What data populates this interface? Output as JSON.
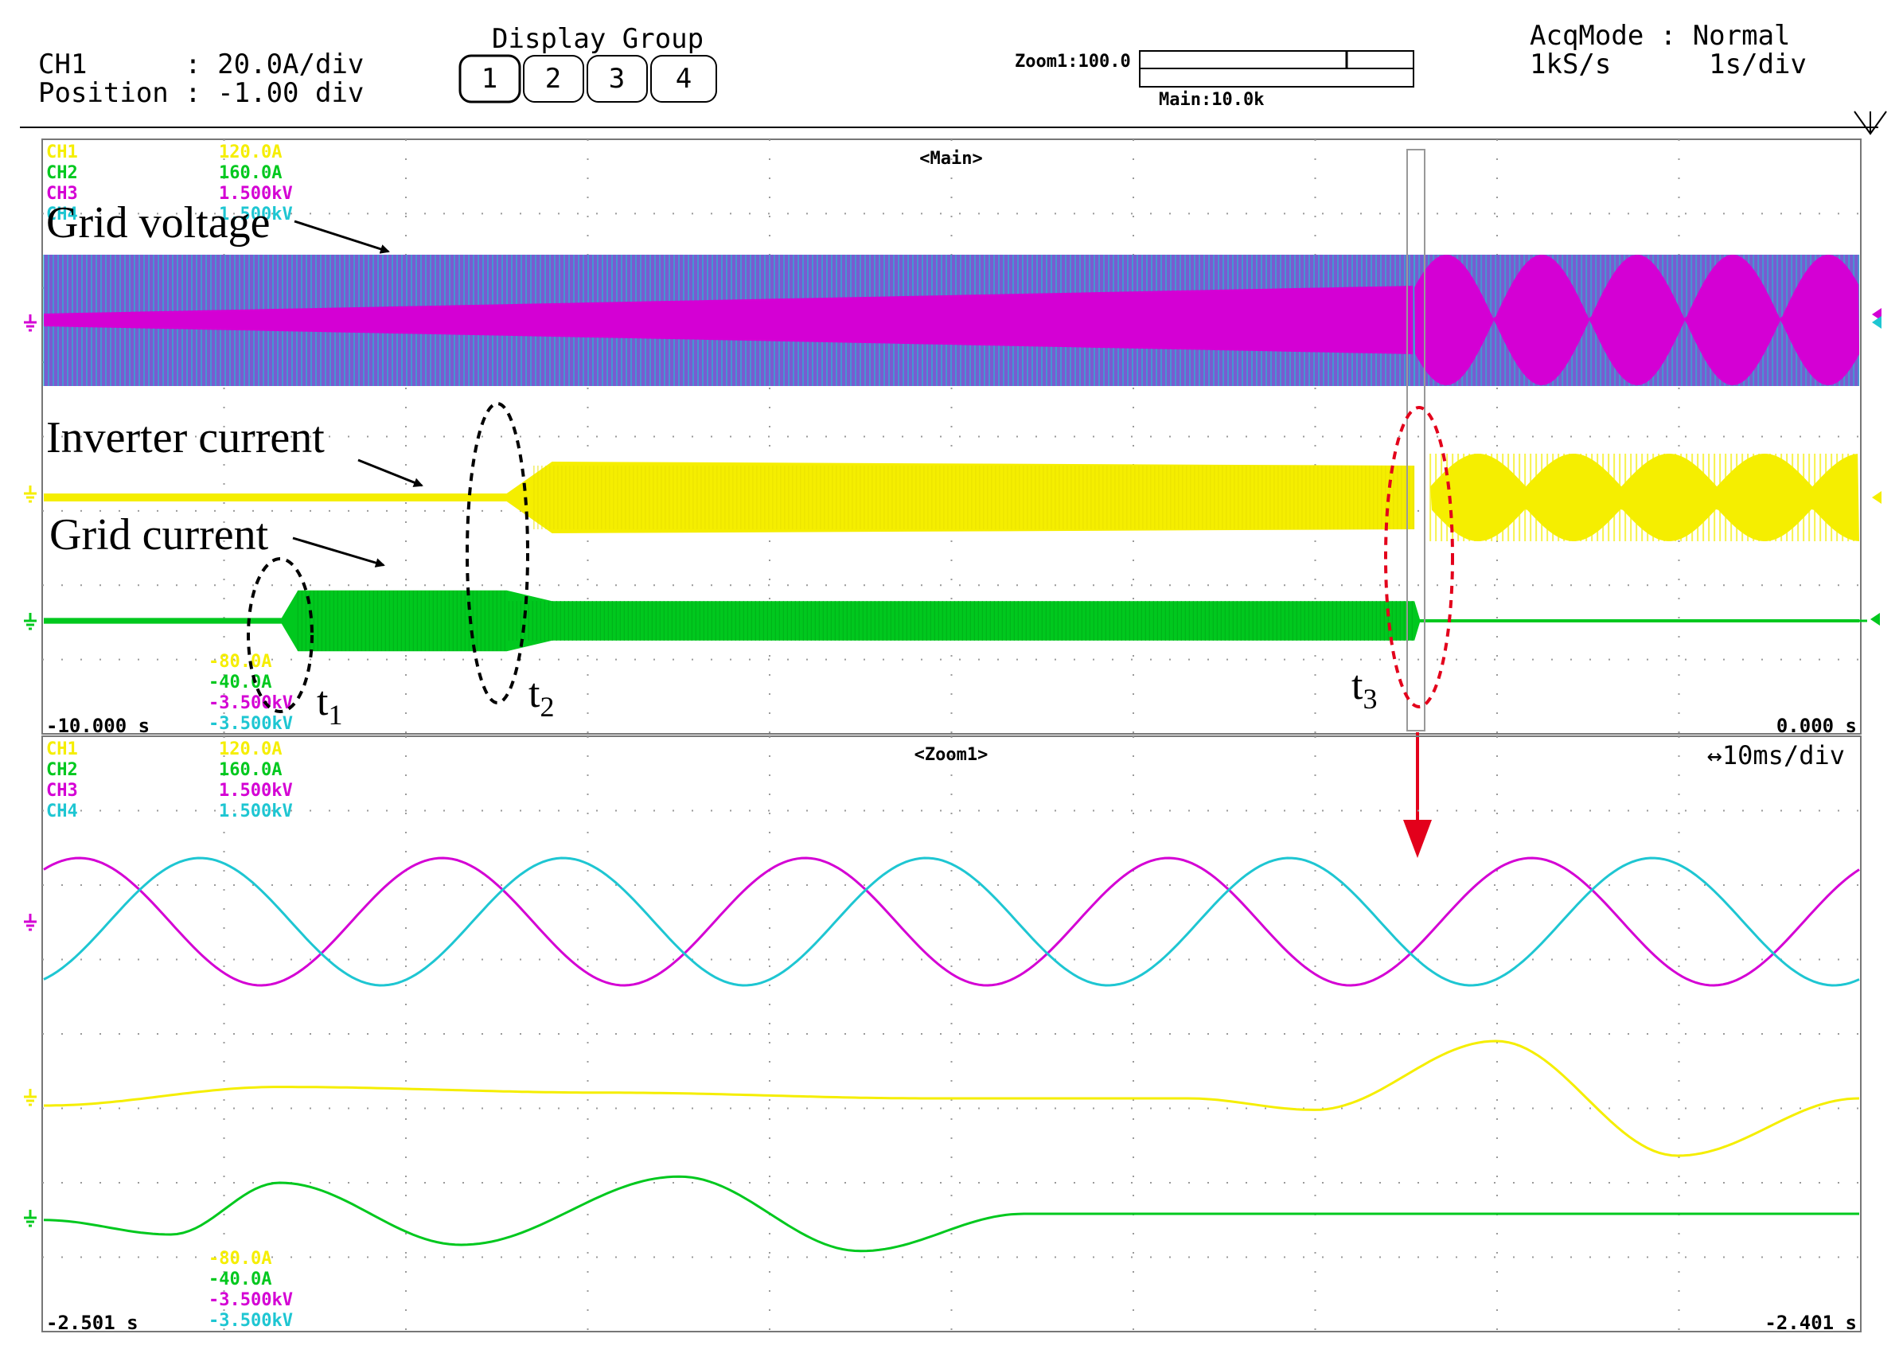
{
  "header": {
    "ch1_line": "CH1      : 20.0A/div",
    "position_line": "Position : -1.00 div",
    "display_group_title": "Display Group",
    "display_group_buttons": [
      "1",
      "2",
      "3",
      "4"
    ],
    "zoom_label": "Zoom1:100.0",
    "main_label": "Main:10.0k",
    "acqmode_line": "AcqMode : Normal",
    "rate_line": "1kS/s      1s/div"
  },
  "colors": {
    "ch1": "#f5ee00",
    "ch2": "#00c81e",
    "ch3": "#d400d4",
    "ch4": "#1ec6d2",
    "grid": "#9a9a9a",
    "annotation": "#000000",
    "highlight": "#e3001b"
  },
  "main_panel": {
    "title": "<Main>",
    "scale_top": [
      {
        "ch": "CH1",
        "value": "120.0A",
        "color": "ch1"
      },
      {
        "ch": "CH2",
        "value": "160.0A",
        "color": "ch2"
      },
      {
        "ch": "CH3",
        "value": "1.500kV",
        "color": "ch3"
      },
      {
        "ch": "CH4",
        "value": "1.500kV",
        "color": "ch4"
      }
    ],
    "scale_bottom": [
      {
        "value": "-80.0A",
        "color": "ch1"
      },
      {
        "value": "-40.0A",
        "color": "ch2"
      },
      {
        "value": "-3.500kV",
        "color": "ch3"
      },
      {
        "value": "-3.500kV",
        "color": "ch4"
      }
    ],
    "time_start": "-10.000 s",
    "time_end": "0.000 s",
    "annotations": [
      "Grid voltage",
      "Inverter current",
      "Grid current"
    ],
    "events": [
      {
        "label": "t",
        "sub": "1"
      },
      {
        "label": "t",
        "sub": "2"
      },
      {
        "label": "t",
        "sub": "3"
      }
    ]
  },
  "zoom_panel": {
    "title": "<Zoom1>",
    "timebase": "↔10ms/div",
    "scale_top": [
      {
        "ch": "CH1",
        "value": "120.0A",
        "color": "ch1"
      },
      {
        "ch": "CH2",
        "value": "160.0A",
        "color": "ch2"
      },
      {
        "ch": "CH3",
        "value": "1.500kV",
        "color": "ch3"
      },
      {
        "ch": "CH4",
        "value": "1.500kV",
        "color": "ch4"
      }
    ],
    "scale_bottom": [
      {
        "value": "-80.0A",
        "color": "ch1"
      },
      {
        "value": "-40.0A",
        "color": "ch2"
      },
      {
        "value": "-3.500kV",
        "color": "ch3"
      },
      {
        "value": "-3.500kV",
        "color": "ch4"
      }
    ],
    "time_start": "-2.501 s",
    "time_end": "-2.401 s"
  },
  "chart_data": [
    {
      "type": "line",
      "title": "<Main>",
      "x_unit": "s",
      "xlim": [
        -10.0,
        0.0
      ],
      "time_per_div": "1s/div",
      "events_s": {
        "t1": -8.69,
        "t2": -7.45,
        "t3": -2.45
      },
      "series": [
        {
          "name": "Grid voltage",
          "channel": "CH3/CH4",
          "envelope_kV": [
            {
              "t": -10.0,
              "peak": 1.5
            },
            {
              "t": -2.45,
              "peak": 1.5
            },
            {
              "t": 0.0,
              "peak": 1.5
            }
          ],
          "note_beats_after_t3": true
        },
        {
          "name": "Inverter current",
          "channel": "CH1",
          "envelope_A": [
            {
              "t": -10.0,
              "peak": 5
            },
            {
              "t": -7.45,
              "peak": 5
            },
            {
              "t": -7.2,
              "peak": 45
            },
            {
              "t": -2.45,
              "peak": 40
            },
            {
              "t": 0.0,
              "peak": 80
            }
          ]
        },
        {
          "name": "Grid current",
          "channel": "CH2",
          "envelope_A": [
            {
              "t": -10.0,
              "peak": 8
            },
            {
              "t": -8.69,
              "peak": 8
            },
            {
              "t": -8.6,
              "peak": 85
            },
            {
              "t": -7.45,
              "peak": 85
            },
            {
              "t": -7.2,
              "peak": 55
            },
            {
              "t": -2.45,
              "peak": 55
            },
            {
              "t": -2.42,
              "peak": 0
            },
            {
              "t": 0.0,
              "peak": 0
            }
          ]
        }
      ]
    },
    {
      "type": "line",
      "title": "<Zoom1>",
      "x_unit": "s",
      "xlim": [
        -2.501,
        -2.401
      ],
      "time_per_div": "10ms/div",
      "series": [
        {
          "name": "CH3",
          "unit": "kV",
          "amplitude": 1.0,
          "frequency_hz": 50,
          "phase_deg": 0
        },
        {
          "name": "CH4",
          "unit": "kV",
          "amplitude": 1.0,
          "frequency_hz": 50,
          "phase_deg": -120
        },
        {
          "name": "CH1",
          "unit": "A",
          "points": [
            [
              -2.501,
              -5
            ],
            [
              -2.488,
              8
            ],
            [
              -2.47,
              4
            ],
            [
              -2.452,
              0
            ],
            [
              -2.438,
              0
            ],
            [
              -2.431,
              -8
            ],
            [
              -2.421,
              40
            ],
            [
              -2.411,
              -40
            ],
            [
              -2.401,
              0
            ]
          ]
        },
        {
          "name": "CH2",
          "unit": "A",
          "points": [
            [
              -2.501,
              -3
            ],
            [
              -2.494,
              -10
            ],
            [
              -2.488,
              15
            ],
            [
              -2.478,
              -15
            ],
            [
              -2.466,
              18
            ],
            [
              -2.456,
              -18
            ],
            [
              -2.447,
              0
            ],
            [
              -2.401,
              0
            ]
          ]
        }
      ]
    }
  ]
}
